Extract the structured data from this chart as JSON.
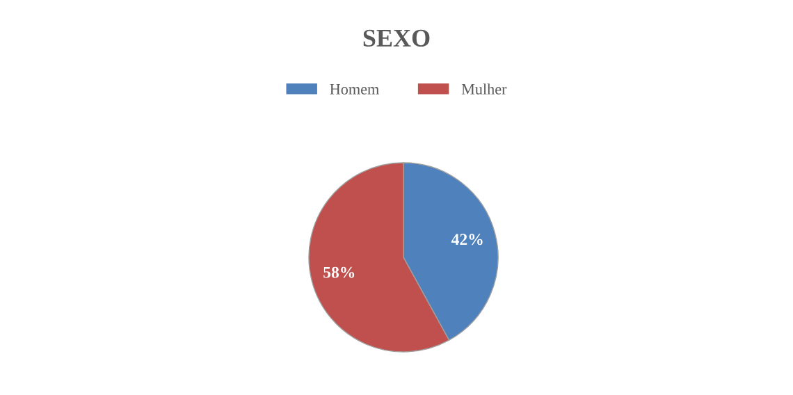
{
  "chart_data": {
    "type": "pie",
    "title": "SEXO",
    "categories": [
      "Homem",
      "Mulher"
    ],
    "values": [
      42,
      58
    ],
    "colors": [
      "#4f81bd",
      "#c0504d"
    ],
    "value_labels": [
      "42%",
      "58%"
    ],
    "legend": "top"
  }
}
